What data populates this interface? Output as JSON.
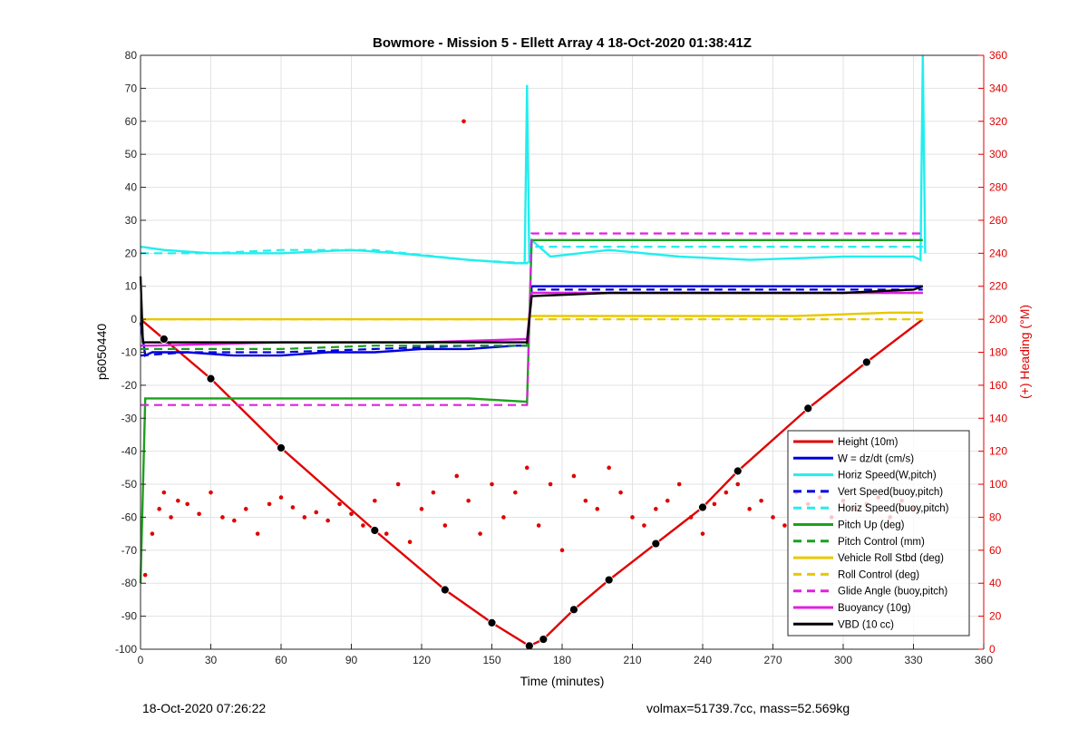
{
  "chart_data": {
    "type": "line",
    "title": "Bowmore - Mission 5 - Ellett Array 4 18-Oct-2020 01:38:41Z",
    "xlabel": "Time (minutes)",
    "ylabel": "p6050440",
    "y2label": "(+) Heading (°M)",
    "xlim": [
      0,
      360
    ],
    "ylim": [
      -100,
      80
    ],
    "y2lim": [
      0,
      360
    ],
    "xticks": [
      0,
      30,
      60,
      90,
      120,
      150,
      180,
      210,
      240,
      270,
      300,
      330,
      360
    ],
    "yticks": [
      80,
      70,
      60,
      50,
      40,
      30,
      20,
      10,
      0,
      -10,
      -20,
      -30,
      -40,
      -50,
      -60,
      -70,
      -80,
      -90,
      -100
    ],
    "y2ticks": [
      360,
      340,
      320,
      300,
      280,
      260,
      240,
      220,
      200,
      180,
      160,
      140,
      120,
      100,
      80,
      60,
      40,
      20,
      0
    ],
    "grid": true,
    "legend_position": "bottom-right",
    "colors": {
      "red": "#e00000",
      "blue": "#0000dd",
      "cyan": "#22eeee",
      "green": "#1ca01c",
      "yellow": "#e8c800",
      "magenta": "#e020e0",
      "black": "#000000",
      "right_axis": "#e00000"
    },
    "series": [
      {
        "name": "Height (10m)",
        "color": "#e00000",
        "style": "solid",
        "x": [
          0,
          10,
          30,
          60,
          100,
          130,
          150,
          166,
          172,
          185,
          200,
          220,
          240,
          255,
          285,
          310,
          334
        ],
        "y": [
          0,
          -6,
          -18,
          -39,
          -64,
          -82,
          -92,
          -99,
          -97,
          -88,
          -79,
          -68,
          -57,
          -46,
          -27,
          -13,
          0
        ]
      },
      {
        "name": "W = dz/dt (cm/s)",
        "color": "#0000dd",
        "style": "solid",
        "x": [
          0,
          2,
          5,
          20,
          40,
          60,
          80,
          100,
          120,
          140,
          160,
          165,
          167,
          180,
          200,
          230,
          260,
          300,
          334
        ],
        "y": [
          -1,
          -11,
          -10,
          -10,
          -11,
          -11,
          -10,
          -10,
          -9,
          -9,
          -8,
          -8,
          10,
          10,
          10,
          10,
          10,
          10,
          10
        ]
      },
      {
        "name": "Horiz Speed(W,pitch)",
        "color": "#22eeee",
        "style": "solid",
        "x": [
          0,
          10,
          30,
          60,
          90,
          110,
          140,
          160,
          164,
          165,
          166,
          167,
          175,
          200,
          230,
          260,
          300,
          330,
          333,
          334,
          335
        ],
        "y": [
          22,
          21,
          20,
          20,
          21,
          20,
          18,
          17,
          17,
          71,
          17,
          24,
          19,
          21,
          19,
          18,
          19,
          19,
          18,
          80,
          20
        ]
      },
      {
        "name": "Vert Speed(buoy,pitch)",
        "color": "#0000dd",
        "style": "dashed",
        "x": [
          0,
          20,
          60,
          100,
          140,
          165,
          167,
          200,
          250,
          300,
          334
        ],
        "y": [
          -11,
          -10,
          -10,
          -9,
          -8,
          -8,
          9,
          9,
          9,
          9,
          9
        ]
      },
      {
        "name": "Horiz Speed(buoy,pitch)",
        "color": "#22eeee",
        "style": "dashed",
        "x": [
          0,
          30,
          60,
          100,
          140,
          165,
          167,
          200,
          250,
          300,
          334
        ],
        "y": [
          20,
          20,
          21,
          21,
          18,
          17,
          22,
          22,
          22,
          22,
          22
        ]
      },
      {
        "name": "Pitch Up (deg)",
        "color": "#1ca01c",
        "style": "solid",
        "x": [
          0,
          2,
          5,
          20,
          60,
          100,
          140,
          165,
          167,
          200,
          250,
          300,
          334
        ],
        "y": [
          -80,
          -24,
          -24,
          -24,
          -24,
          -24,
          -24,
          -25,
          24,
          24,
          24,
          24,
          24
        ]
      },
      {
        "name": "Pitch Control (mm)",
        "color": "#1ca01c",
        "style": "dashed",
        "x": [
          0,
          5,
          60,
          100,
          140,
          165,
          167,
          200,
          250,
          300,
          334
        ],
        "y": [
          -9,
          -9,
          -9,
          -8,
          -8,
          -8,
          8,
          8,
          8,
          8,
          8
        ]
      },
      {
        "name": "Vehicle Roll Stbd (deg)",
        "color": "#e8c800",
        "style": "solid",
        "x": [
          0,
          5,
          40,
          80,
          120,
          160,
          165,
          167,
          200,
          240,
          280,
          320,
          334
        ],
        "y": [
          0,
          0,
          0,
          0,
          0,
          0,
          0,
          1,
          1,
          1,
          1,
          2,
          2
        ]
      },
      {
        "name": "Roll Control (deg)",
        "color": "#e8c800",
        "style": "dashed",
        "x": [
          0,
          60,
          120,
          165,
          167,
          230,
          300,
          334
        ],
        "y": [
          0,
          0,
          0,
          0,
          0,
          0,
          0,
          0
        ]
      },
      {
        "name": "Glide Angle (buoy,pitch)",
        "color": "#e020e0",
        "style": "dashed",
        "x": [
          0,
          5,
          60,
          120,
          165,
          167,
          200,
          260,
          300,
          334
        ],
        "y": [
          -26,
          -26,
          -26,
          -26,
          -26,
          26,
          26,
          26,
          26,
          26
        ]
      },
      {
        "name": "Buoyancy (10g)",
        "color": "#e020e0",
        "style": "solid",
        "x": [
          0,
          5,
          60,
          120,
          165,
          167,
          200,
          260,
          300,
          334
        ],
        "y": [
          -8,
          -8,
          -7,
          -7,
          -6,
          8,
          8,
          8,
          8,
          8
        ]
      },
      {
        "name": "VBD (10 cc)",
        "color": "#000000",
        "style": "solid",
        "x": [
          0,
          1,
          2,
          5,
          60,
          120,
          165,
          167,
          200,
          260,
          300,
          330,
          334
        ],
        "y": [
          13,
          -7,
          -7,
          -7,
          -7,
          -7,
          -7,
          7,
          8,
          8,
          8,
          9,
          10
        ]
      }
    ],
    "heading": {
      "name": "(+) Heading (°M)",
      "color": "#e00000",
      "style": "dots",
      "axis": "right",
      "x": [
        2,
        5,
        8,
        10,
        13,
        16,
        20,
        25,
        30,
        35,
        40,
        45,
        50,
        55,
        60,
        65,
        70,
        75,
        80,
        85,
        90,
        95,
        100,
        105,
        110,
        115,
        120,
        125,
        130,
        135,
        138,
        140,
        145,
        150,
        155,
        160,
        165,
        170,
        175,
        180,
        185,
        190,
        195,
        200,
        205,
        210,
        215,
        220,
        225,
        230,
        235,
        240,
        245,
        250,
        255,
        260,
        265,
        270,
        275,
        280,
        285,
        290,
        295,
        300,
        305,
        310,
        315,
        320,
        325,
        330
      ],
      "y": [
        45,
        70,
        85,
        95,
        80,
        90,
        88,
        82,
        95,
        80,
        78,
        85,
        70,
        88,
        92,
        86,
        80,
        83,
        78,
        88,
        82,
        75,
        90,
        70,
        100,
        65,
        85,
        95,
        75,
        105,
        320,
        90,
        70,
        100,
        80,
        95,
        110,
        75,
        100,
        60,
        105,
        90,
        85,
        110,
        95,
        80,
        75,
        85,
        90,
        100,
        80,
        70,
        88,
        95,
        100,
        85,
        90,
        80,
        75,
        95,
        88,
        92,
        80,
        90,
        85,
        88,
        92,
        80,
        90,
        85
      ]
    }
  },
  "footer": {
    "left": "18-Oct-2020 07:26:22",
    "right": "volmax=51739.7cc, mass=52.569kg"
  }
}
